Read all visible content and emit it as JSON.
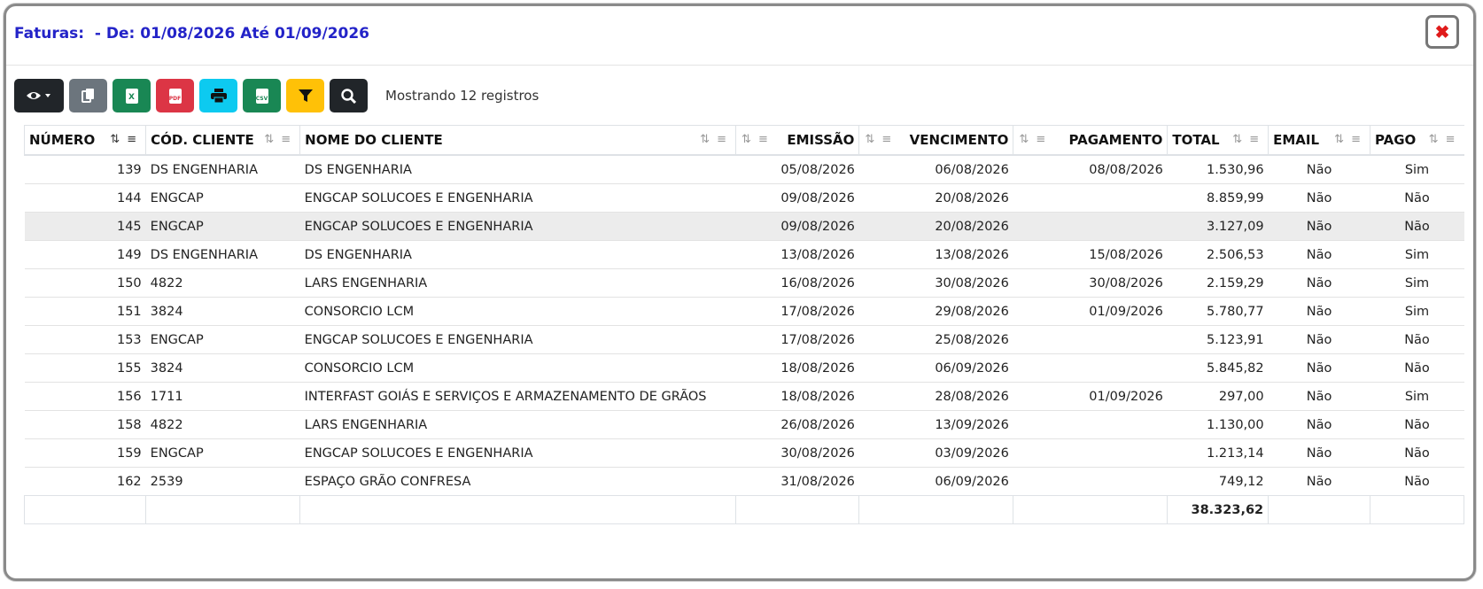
{
  "header": {
    "title": "Faturas:  - De: 01/08/2026 Até 01/09/2026",
    "close_label": "✖"
  },
  "toolbar": {
    "buttons": [
      {
        "name": "visibility-button",
        "icon": "eye-icon",
        "color": "#212529"
      },
      {
        "name": "copy-button",
        "icon": "copy-icon",
        "color": "#6c757d"
      },
      {
        "name": "excel-button",
        "icon": "excel-file-icon",
        "color": "#198754"
      },
      {
        "name": "pdf-button",
        "icon": "pdf-file-icon",
        "color": "#dc3545"
      },
      {
        "name": "print-button",
        "icon": "print-icon",
        "color": "#0dcaf0"
      },
      {
        "name": "csv-button",
        "icon": "csv-file-icon",
        "color": "#198754"
      },
      {
        "name": "filter-button",
        "icon": "filter-icon",
        "color": "#ffc107"
      },
      {
        "name": "search-button",
        "icon": "search-icon",
        "color": "#212529"
      }
    ],
    "records_text": "Mostrando 12 registros"
  },
  "table": {
    "columns": [
      "NÚMERO",
      "CÓD. CLIENTE",
      "NOME DO CLIENTE",
      "EMISSÃO",
      "VENCIMENTO",
      "PAGAMENTO",
      "TOTAL",
      "EMAIL",
      "PAGO"
    ],
    "rows": [
      [
        "139",
        "DS ENGENHARIA",
        "DS ENGENHARIA",
        "05/08/2026",
        "06/08/2026",
        "08/08/2026",
        "1.530,96",
        "Não",
        "Sim"
      ],
      [
        "144",
        "ENGCAP",
        "ENGCAP SOLUCOES E ENGENHARIA",
        "09/08/2026",
        "20/08/2026",
        "",
        "8.859,99",
        "Não",
        "Não"
      ],
      [
        "145",
        "ENGCAP",
        "ENGCAP SOLUCOES E ENGENHARIA",
        "09/08/2026",
        "20/08/2026",
        "",
        "3.127,09",
        "Não",
        "Não"
      ],
      [
        "149",
        "DS ENGENHARIA",
        "DS ENGENHARIA",
        "13/08/2026",
        "13/08/2026",
        "15/08/2026",
        "2.506,53",
        "Não",
        "Sim"
      ],
      [
        "150",
        "4822",
        "LARS ENGENHARIA",
        "16/08/2026",
        "30/08/2026",
        "30/08/2026",
        "2.159,29",
        "Não",
        "Sim"
      ],
      [
        "151",
        "3824",
        "CONSORCIO LCM",
        "17/08/2026",
        "29/08/2026",
        "01/09/2026",
        "5.780,77",
        "Não",
        "Sim"
      ],
      [
        "153",
        "ENGCAP",
        "ENGCAP SOLUCOES E ENGENHARIA",
        "17/08/2026",
        "25/08/2026",
        "",
        "5.123,91",
        "Não",
        "Não"
      ],
      [
        "155",
        "3824",
        "CONSORCIO LCM",
        "18/08/2026",
        "06/09/2026",
        "",
        "5.845,82",
        "Não",
        "Não"
      ],
      [
        "156",
        "1711",
        "INTERFAST GOIÁS E SERVIÇOS E ARMAZENAMENTO DE GRÃOS",
        "18/08/2026",
        "28/08/2026",
        "01/09/2026",
        "297,00",
        "Não",
        "Sim"
      ],
      [
        "158",
        "4822",
        "LARS ENGENHARIA",
        "26/08/2026",
        "13/09/2026",
        "",
        "1.130,00",
        "Não",
        "Não"
      ],
      [
        "159",
        "ENGCAP",
        "ENGCAP SOLUCOES E ENGENHARIA",
        "30/08/2026",
        "03/09/2026",
        "",
        "1.213,14",
        "Não",
        "Não"
      ],
      [
        "162",
        "2539",
        "ESPAÇO GRÃO CONFRESA",
        "31/08/2026",
        "06/09/2026",
        "",
        "749,12",
        "Não",
        "Não"
      ]
    ],
    "highlighted_row": "145",
    "footer_total": "38.323,62"
  }
}
